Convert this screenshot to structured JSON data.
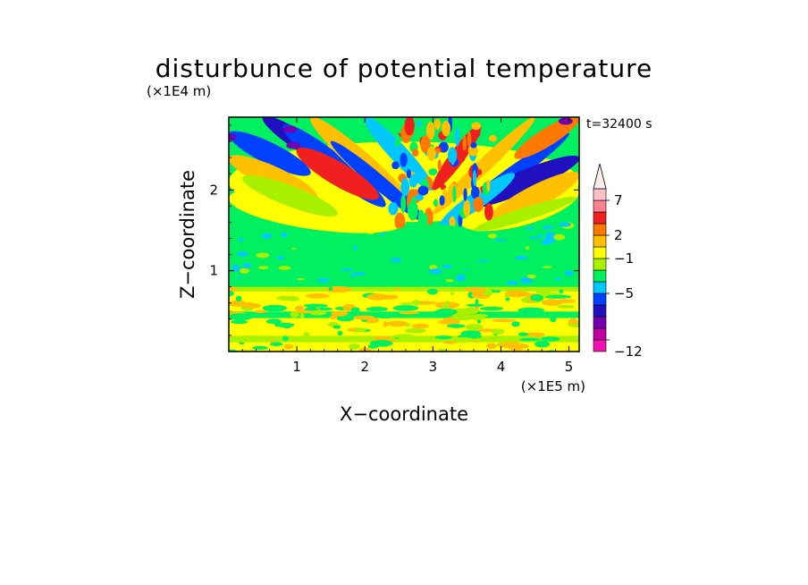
{
  "chart_data": {
    "type": "heatmap",
    "title": "disturbunce of potential temperature",
    "time_label": "t=32400 s",
    "xlabel": "X−coordinate",
    "ylabel": "Z−coordinate",
    "x_unit": "(×1E5 m)",
    "y_unit": "(×1E4 m)",
    "xlim": [
      0,
      5.15
    ],
    "ylim": [
      0,
      2.9
    ],
    "x_ticks": [
      {
        "value": 1,
        "label": "1"
      },
      {
        "value": 2,
        "label": "2"
      },
      {
        "value": 3,
        "label": "3"
      },
      {
        "value": 4,
        "label": "4"
      },
      {
        "value": 5,
        "label": "5"
      }
    ],
    "y_ticks": [
      {
        "value": 1,
        "label": "1"
      },
      {
        "value": 2,
        "label": "2"
      }
    ],
    "colorbar": {
      "levels": [
        {
          "color": "#f010b0"
        },
        {
          "color": "#c000a0"
        },
        {
          "color": "#7000b0"
        },
        {
          "color": "#2010c0"
        },
        {
          "color": "#0040ff"
        },
        {
          "color": "#00c8ff"
        },
        {
          "color": "#00f060"
        },
        {
          "color": "#a8f000"
        },
        {
          "color": "#ffff00"
        },
        {
          "color": "#ffc000"
        },
        {
          "color": "#ff7800"
        },
        {
          "color": "#f02020"
        },
        {
          "color": "#ff8090"
        },
        {
          "color": "#ffc0c8"
        }
      ],
      "top_extension_color": "#ffeef0",
      "labels": [
        {
          "after_level": 0,
          "label": "−12"
        },
        {
          "after_level": 4,
          "label": "−5"
        },
        {
          "after_level": 7,
          "label": "−1"
        },
        {
          "after_level": 9,
          "label": "2"
        },
        {
          "after_level": 12,
          "label": "7"
        }
      ]
    },
    "field_description_rows": [
      {
        "z_range": [
          0.0,
          0.2
        ],
        "dominant": "yellow",
        "noise": "green"
      },
      {
        "z_range": [
          0.2,
          0.45
        ],
        "dominant": "yellow",
        "noise": "green"
      },
      {
        "z_range": [
          0.45,
          0.75
        ],
        "dominant": "yellow",
        "noise": "orange"
      },
      {
        "z_range": [
          0.75,
          1.5
        ],
        "dominant": "green",
        "noise": "cyan"
      },
      {
        "z_range": [
          1.5,
          2.9
        ],
        "dominant": "wave",
        "noise": "wave"
      }
    ]
  }
}
